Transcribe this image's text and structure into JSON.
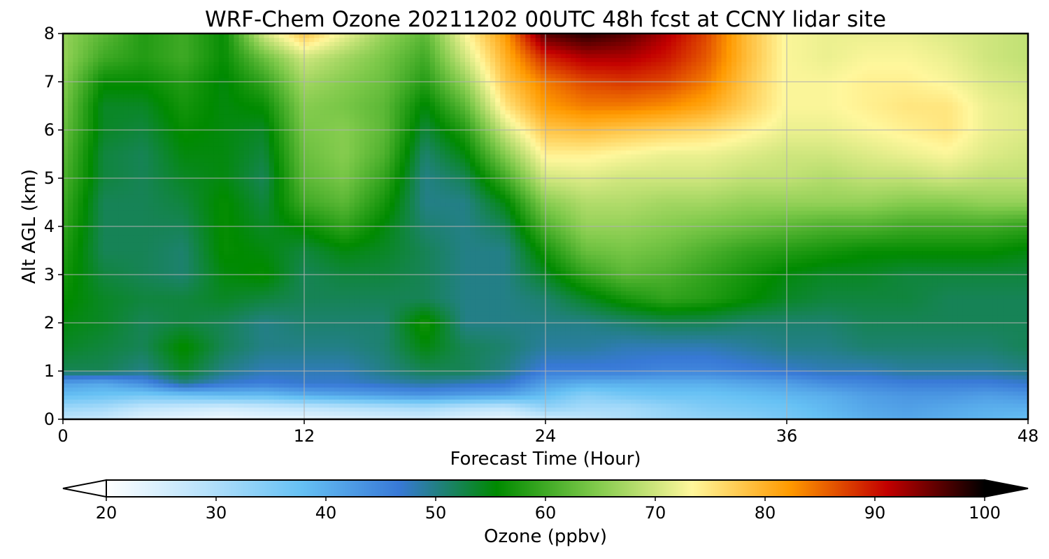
{
  "chart_data": {
    "type": "heatmap",
    "title": "WRF-Chem Ozone  20211202 00UTC 48h fcst at CCNY lidar site",
    "xlabel": "Forecast Time (Hour)",
    "ylabel": "Alt AGL (km)",
    "xlim": [
      0,
      48
    ],
    "ylim": [
      0,
      8
    ],
    "x_ticks": [
      0,
      12,
      24,
      36,
      48
    ],
    "y_ticks": [
      0,
      1,
      2,
      3,
      4,
      5,
      6,
      7,
      8
    ],
    "grid": true,
    "x_hours": [
      0,
      2,
      4,
      6,
      8,
      10,
      12,
      14,
      16,
      18,
      20,
      22,
      24,
      26,
      28,
      30,
      32,
      34,
      36,
      38,
      40,
      42,
      44,
      46,
      48
    ],
    "z_km": [
      0,
      0.25,
      0.5,
      0.75,
      1,
      1.5,
      2,
      2.5,
      3,
      3.5,
      4,
      4.5,
      5,
      5.5,
      6,
      6.5,
      7,
      7.5,
      8
    ],
    "ozone_ppbv": [
      [
        28,
        27,
        24,
        23,
        22,
        23,
        23,
        24,
        25,
        26,
        24,
        23,
        26,
        28,
        30,
        32,
        33,
        34,
        36,
        38,
        40,
        41,
        40,
        39,
        38
      ],
      [
        32,
        31,
        28,
        27,
        26,
        27,
        28,
        29,
        30,
        31,
        29,
        28,
        33,
        31,
        31,
        33,
        35,
        36,
        37,
        39,
        41,
        42,
        41,
        40,
        40
      ],
      [
        38,
        37,
        36,
        37,
        38,
        38,
        40,
        41,
        42,
        43,
        42,
        41,
        38,
        34,
        36,
        37,
        37,
        38,
        39,
        40,
        42,
        43,
        43,
        42,
        43
      ],
      [
        42,
        41,
        44,
        50,
        47,
        46,
        47,
        47,
        48,
        49,
        48,
        47,
        42,
        40,
        40,
        40,
        40,
        41,
        42,
        44,
        45,
        46,
        46,
        46,
        47
      ],
      [
        52,
        52,
        50,
        54,
        50,
        48,
        48,
        48,
        50,
        52,
        52,
        50,
        46,
        46,
        46,
        45,
        45,
        46,
        47,
        48,
        48,
        49,
        49,
        49,
        50
      ],
      [
        54,
        53,
        52,
        56,
        52,
        50,
        50,
        50,
        51,
        55,
        52,
        51,
        49,
        49,
        48,
        48,
        48,
        49,
        50,
        50,
        51,
        51,
        51,
        51,
        52
      ],
      [
        55,
        54,
        52,
        53,
        52,
        50,
        51,
        51,
        51,
        57,
        50,
        50,
        50,
        50,
        51,
        52,
        52,
        51,
        51,
        51,
        52,
        52,
        52,
        52,
        52
      ],
      [
        56,
        54,
        53,
        53,
        54,
        53,
        52,
        52,
        52,
        52,
        50,
        50,
        51,
        54,
        57,
        59,
        58,
        56,
        54,
        53,
        53,
        53,
        52,
        52,
        52
      ],
      [
        57,
        53,
        52,
        51,
        55,
        56,
        52,
        53,
        53,
        52,
        50,
        50,
        54,
        59,
        62,
        61,
        59,
        57,
        55,
        54,
        54,
        53,
        53,
        53,
        53
      ],
      [
        58,
        52,
        52,
        51,
        56,
        55,
        53,
        55,
        54,
        52,
        50,
        50,
        57,
        63,
        64,
        63,
        61,
        59,
        58,
        57,
        56,
        56,
        56,
        56,
        55
      ],
      [
        59,
        52,
        52,
        52,
        56,
        54,
        56,
        59,
        55,
        51,
        50,
        52,
        61,
        66,
        66,
        65,
        64,
        63,
        62,
        61,
        61,
        60,
        60,
        60,
        59
      ],
      [
        60,
        52,
        52,
        53,
        56,
        53,
        60,
        62,
        57,
        50,
        50,
        55,
        65,
        68,
        68,
        67,
        67,
        66,
        66,
        66,
        66,
        65,
        65,
        66,
        66
      ],
      [
        61,
        53,
        52,
        54,
        55,
        52,
        62,
        64,
        59,
        50,
        52,
        60,
        70,
        71,
        70,
        70,
        70,
        69,
        69,
        68,
        69,
        69,
        70,
        69,
        69
      ],
      [
        62,
        53,
        52,
        55,
        55,
        53,
        63,
        65,
        61,
        51,
        55,
        65,
        74,
        74,
        73,
        72,
        72,
        71,
        70,
        70,
        71,
        72,
        73,
        71,
        70
      ],
      [
        63,
        54,
        53,
        56,
        55,
        54,
        64,
        65,
        62,
        53,
        58,
        70,
        78,
        79,
        78,
        77,
        76,
        74,
        72,
        72,
        73,
        74,
        75,
        72,
        71
      ],
      [
        64,
        54,
        54,
        57,
        55,
        56,
        65,
        64,
        62,
        55,
        62,
        75,
        82,
        84,
        84,
        83,
        81,
        77,
        73,
        73,
        74,
        75,
        75,
        72,
        71
      ],
      [
        65,
        56,
        56,
        58,
        55,
        59,
        67,
        65,
        63,
        58,
        66,
        78,
        84,
        87,
        88,
        87,
        84,
        78,
        73,
        73,
        74,
        74,
        73,
        71,
        70
      ],
      [
        66,
        60,
        58,
        60,
        56,
        63,
        70,
        67,
        64,
        60,
        70,
        80,
        89,
        92,
        92,
        90,
        86,
        79,
        73,
        72,
        73,
        73,
        72,
        70,
        69
      ],
      [
        66,
        62,
        58,
        60,
        56,
        70,
        78,
        72,
        66,
        62,
        73,
        82,
        96,
        98,
        96,
        92,
        87,
        79,
        73,
        72,
        72,
        72,
        71,
        70,
        69
      ]
    ],
    "colorbar": {
      "label": "Ozone  (ppbv)",
      "min": 20,
      "max": 100,
      "ticks": [
        20,
        30,
        40,
        50,
        60,
        70,
        80,
        90,
        100
      ],
      "extend": "both",
      "colors": [
        "#ffffff",
        "#b8e2fb",
        "#66c1f4",
        "#3879d6",
        "#008a00",
        "#7ec94a",
        "#fff79c",
        "#ff9a00",
        "#c30000",
        "#000000"
      ]
    }
  }
}
